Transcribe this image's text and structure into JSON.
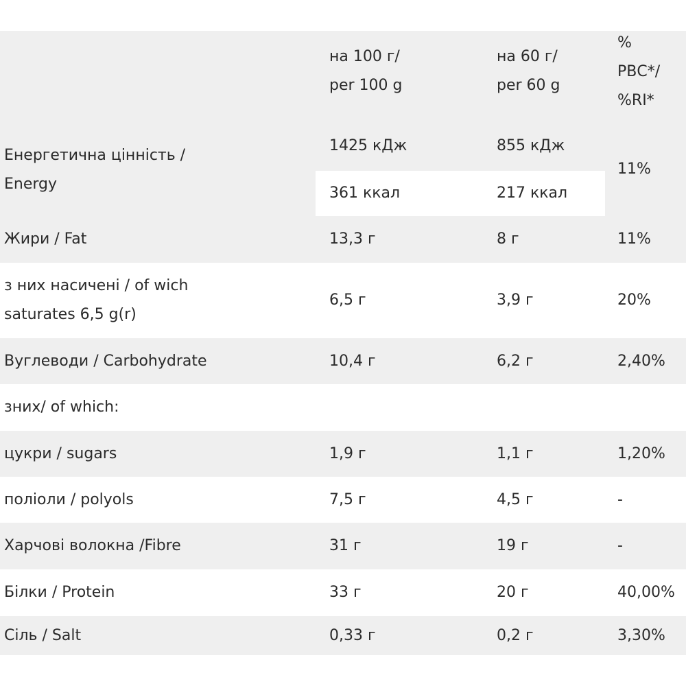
{
  "table": {
    "header": {
      "per_100g": [
        "на 100 г/",
        "per 100 g"
      ],
      "per_60g": [
        "на 60 г/",
        "per 60 g"
      ],
      "ri": [
        "%",
        "РВС*/",
        "%RI*"
      ]
    },
    "rows": [
      {
        "label": [
          "Енергетична цінність /",
          "Energy"
        ],
        "per_100g": [
          "1425 кДж",
          "361 ккал"
        ],
        "per_60g": [
          "855 кДж",
          "217 ккал"
        ],
        "ri": [
          "11%"
        ]
      },
      {
        "label": [
          "Жири / Fat"
        ],
        "per_100g": [
          "13,3 г"
        ],
        "per_60g": [
          "8 г"
        ],
        "ri": [
          "11%"
        ]
      },
      {
        "label": [
          "з них насичені / of wich",
          "saturates 6,5 g(r)"
        ],
        "per_100g": [
          "6,5 г"
        ],
        "per_60g": [
          "3,9 г"
        ],
        "ri": [
          "20%"
        ]
      },
      {
        "label": [
          "Вуглеводи / Carbohydrate"
        ],
        "per_100g": [
          "10,4 г"
        ],
        "per_60g": [
          "6,2 г"
        ],
        "ri": [
          "2,40%"
        ]
      },
      {
        "label": [
          "зних/ of which:"
        ]
      },
      {
        "label": [
          "цукри / sugars"
        ],
        "per_100g": [
          "1,9 г"
        ],
        "per_60g": [
          "1,1 г"
        ],
        "ri": [
          "1,20%"
        ]
      },
      {
        "label": [
          "поліоли / polyols"
        ],
        "per_100g": [
          "7,5 г"
        ],
        "per_60g": [
          "4,5 г"
        ],
        "ri": [
          "-"
        ]
      },
      {
        "label": [
          "Харчові волокна /Fibre"
        ],
        "per_100g": [
          "31 г"
        ],
        "per_60g": [
          "19 г"
        ],
        "ri": [
          "-"
        ]
      },
      {
        "label": [
          "Білки / Protein"
        ],
        "per_100g": [
          "33 г"
        ],
        "per_60g": [
          "20 г"
        ],
        "ri": [
          "40,00%"
        ]
      },
      {
        "label": [
          "Сіль / Salt"
        ],
        "per_100g": [
          "0,33 г"
        ],
        "per_60g": [
          "0,2 г"
        ],
        "ri": [
          "3,30%"
        ]
      }
    ]
  }
}
